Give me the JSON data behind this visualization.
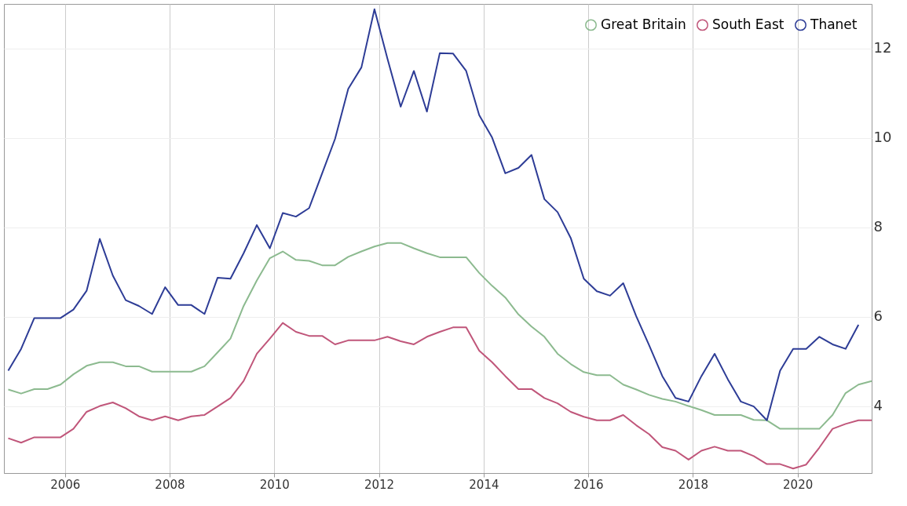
{
  "chart_data": {
    "type": "line",
    "x": [
      "2004-12",
      "2005-03",
      "2005-06",
      "2005-09",
      "2005-12",
      "2006-03",
      "2006-06",
      "2006-09",
      "2006-12",
      "2007-03",
      "2007-06",
      "2007-09",
      "2007-12",
      "2008-03",
      "2008-06",
      "2008-09",
      "2008-12",
      "2009-03",
      "2009-06",
      "2009-09",
      "2009-12",
      "2010-03",
      "2010-06",
      "2010-09",
      "2010-12",
      "2011-03",
      "2011-06",
      "2011-09",
      "2011-12",
      "2012-03",
      "2012-06",
      "2012-09",
      "2012-12",
      "2013-03",
      "2013-06",
      "2013-09",
      "2013-12",
      "2014-03",
      "2014-06",
      "2014-09",
      "2014-12",
      "2015-03",
      "2015-06",
      "2015-09",
      "2015-12",
      "2016-03",
      "2016-06",
      "2016-09",
      "2016-12",
      "2017-03",
      "2017-06",
      "2017-09",
      "2017-12",
      "2018-03",
      "2018-06",
      "2018-09",
      "2018-12",
      "2019-03",
      "2019-06",
      "2019-09",
      "2019-12",
      "2020-03",
      "2020-06",
      "2020-09",
      "2020-12",
      "2021-03",
      "2021-06"
    ],
    "series": [
      {
        "name": "Great Britain",
        "color": "#8cba8f",
        "values": [
          4.37,
          4.28,
          4.38,
          4.38,
          4.48,
          4.71,
          4.9,
          4.98,
          4.98,
          4.89,
          4.89,
          4.77,
          4.77,
          4.77,
          4.77,
          4.89,
          5.2,
          5.51,
          6.24,
          6.81,
          7.31,
          7.46,
          7.27,
          7.25,
          7.15,
          7.15,
          7.34,
          7.46,
          7.57,
          7.65,
          7.65,
          7.53,
          7.42,
          7.33,
          7.33,
          7.33,
          6.98,
          6.69,
          6.43,
          6.05,
          5.78,
          5.55,
          5.17,
          4.94,
          4.76,
          4.69,
          4.69,
          4.48,
          4.37,
          4.25,
          4.16,
          4.1,
          4.0,
          3.91,
          3.8,
          3.8,
          3.8,
          3.69,
          3.68,
          3.49,
          3.49,
          3.49,
          3.49,
          3.8,
          4.29,
          4.48,
          4.56
        ]
      },
      {
        "name": "South East",
        "color": "#c0567a",
        "values": [
          3.28,
          3.18,
          3.3,
          3.3,
          3.3,
          3.49,
          3.87,
          4.0,
          4.08,
          3.95,
          3.77,
          3.68,
          3.77,
          3.68,
          3.77,
          3.8,
          3.99,
          4.18,
          4.56,
          5.17,
          5.51,
          5.86,
          5.66,
          5.57,
          5.57,
          5.38,
          5.47,
          5.47,
          5.47,
          5.55,
          5.45,
          5.38,
          5.55,
          5.66,
          5.76,
          5.76,
          5.24,
          4.98,
          4.67,
          4.38,
          4.38,
          4.18,
          4.06,
          3.87,
          3.76,
          3.68,
          3.68,
          3.8,
          3.57,
          3.37,
          3.08,
          3.0,
          2.8,
          3.0,
          3.09,
          3.0,
          3.0,
          2.88,
          2.7,
          2.7,
          2.6,
          2.69,
          3.07,
          3.49,
          3.6,
          3.68,
          3.68
        ]
      },
      {
        "name": "Thanet",
        "color": "#2d3c96",
        "values": [
          4.79,
          5.28,
          5.97,
          5.97,
          5.97,
          6.16,
          6.58,
          7.74,
          6.92,
          6.37,
          6.24,
          6.06,
          6.66,
          6.26,
          6.26,
          6.06,
          6.87,
          6.85,
          7.42,
          8.05,
          7.53,
          8.32,
          8.24,
          8.43,
          9.21,
          9.98,
          11.1,
          11.58,
          12.88,
          11.77,
          10.7,
          11.5,
          10.59,
          11.9,
          11.89,
          11.5,
          10.51,
          10.01,
          9.21,
          9.33,
          9.62,
          8.63,
          8.34,
          7.76,
          6.85,
          6.57,
          6.47,
          6.75,
          6.01,
          5.36,
          4.67,
          4.18,
          4.1,
          4.67,
          5.17,
          4.6,
          4.1,
          3.99,
          3.68,
          4.79,
          5.28,
          5.28,
          5.55,
          5.38,
          5.28,
          5.82,
          null
        ]
      }
    ],
    "xlim": [
      "2004-11",
      "2021-06"
    ],
    "xticks": [
      "2006",
      "2008",
      "2010",
      "2012",
      "2014",
      "2016",
      "2018",
      "2020"
    ],
    "ylim": [
      2.5,
      13
    ],
    "yticks": [
      4,
      6,
      8,
      10,
      12
    ],
    "grid": true,
    "legend": "top right",
    "marker": "none",
    "line_style": "solid"
  }
}
